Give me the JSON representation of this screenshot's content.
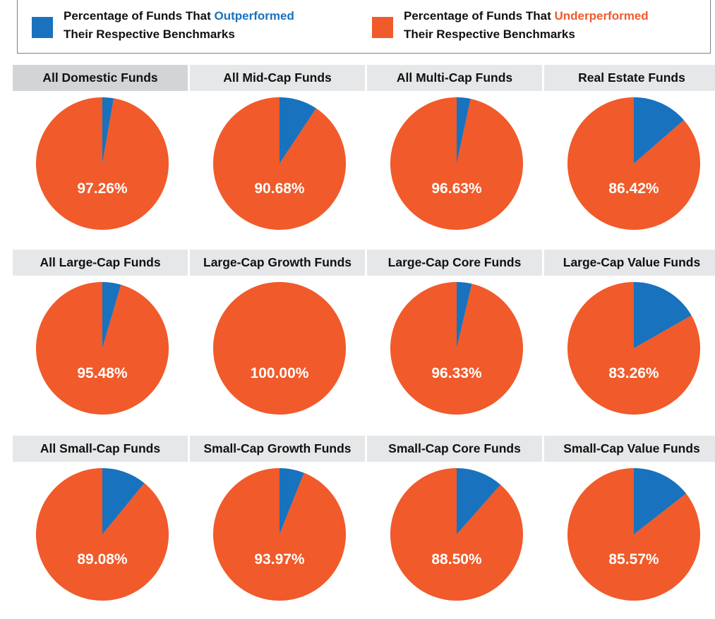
{
  "legend": {
    "outperformed": {
      "line1_prefix": "Percentage of Funds That ",
      "keyword": "Outperformed",
      "line2": "Their Respective Benchmarks",
      "color": "#1872be"
    },
    "underperformed": {
      "line1_prefix": "Percentage of Funds That ",
      "keyword": "Underperformed",
      "line2": "Their Respective Benchmarks",
      "color": "#f15a2a"
    }
  },
  "chart_data": [
    {
      "type": "pie",
      "title": "All Domestic Funds",
      "categories": [
        "Outperformed",
        "Underperformed"
      ],
      "values": [
        2.74,
        97.26
      ],
      "label": "97.26%"
    },
    {
      "type": "pie",
      "title": "All Mid-Cap Funds",
      "categories": [
        "Outperformed",
        "Underperformed"
      ],
      "values": [
        9.32,
        90.68
      ],
      "label": "90.68%"
    },
    {
      "type": "pie",
      "title": "All Multi-Cap Funds",
      "categories": [
        "Outperformed",
        "Underperformed"
      ],
      "values": [
        3.37,
        96.63
      ],
      "label": "96.63%"
    },
    {
      "type": "pie",
      "title": "Real Estate Funds",
      "categories": [
        "Outperformed",
        "Underperformed"
      ],
      "values": [
        13.58,
        86.42
      ],
      "label": "86.42%"
    },
    {
      "type": "pie",
      "title": "All Large-Cap Funds",
      "categories": [
        "Outperformed",
        "Underperformed"
      ],
      "values": [
        4.52,
        95.48
      ],
      "label": "95.48%"
    },
    {
      "type": "pie",
      "title": "Large-Cap Growth Funds",
      "categories": [
        "Outperformed",
        "Underperformed"
      ],
      "values": [
        0.0,
        100.0
      ],
      "label": "100.00%"
    },
    {
      "type": "pie",
      "title": "Large-Cap Core Funds",
      "categories": [
        "Outperformed",
        "Underperformed"
      ],
      "values": [
        3.67,
        96.33
      ],
      "label": "96.33%"
    },
    {
      "type": "pie",
      "title": "Large-Cap Value Funds",
      "categories": [
        "Outperformed",
        "Underperformed"
      ],
      "values": [
        16.74,
        83.26
      ],
      "label": "83.26%"
    },
    {
      "type": "pie",
      "title": "All Small-Cap Funds",
      "categories": [
        "Outperformed",
        "Underperformed"
      ],
      "values": [
        10.92,
        89.08
      ],
      "label": "89.08%"
    },
    {
      "type": "pie",
      "title": "Small-Cap Growth Funds",
      "categories": [
        "Outperformed",
        "Underperformed"
      ],
      "values": [
        6.03,
        93.97
      ],
      "label": "93.97%"
    },
    {
      "type": "pie",
      "title": "Small-Cap Core Funds",
      "categories": [
        "Outperformed",
        "Underperformed"
      ],
      "values": [
        11.5,
        88.5
      ],
      "label": "88.50%"
    },
    {
      "type": "pie",
      "title": "Small-Cap Value Funds",
      "categories": [
        "Outperformed",
        "Underperformed"
      ],
      "values": [
        14.43,
        85.57
      ],
      "label": "85.57%"
    }
  ]
}
